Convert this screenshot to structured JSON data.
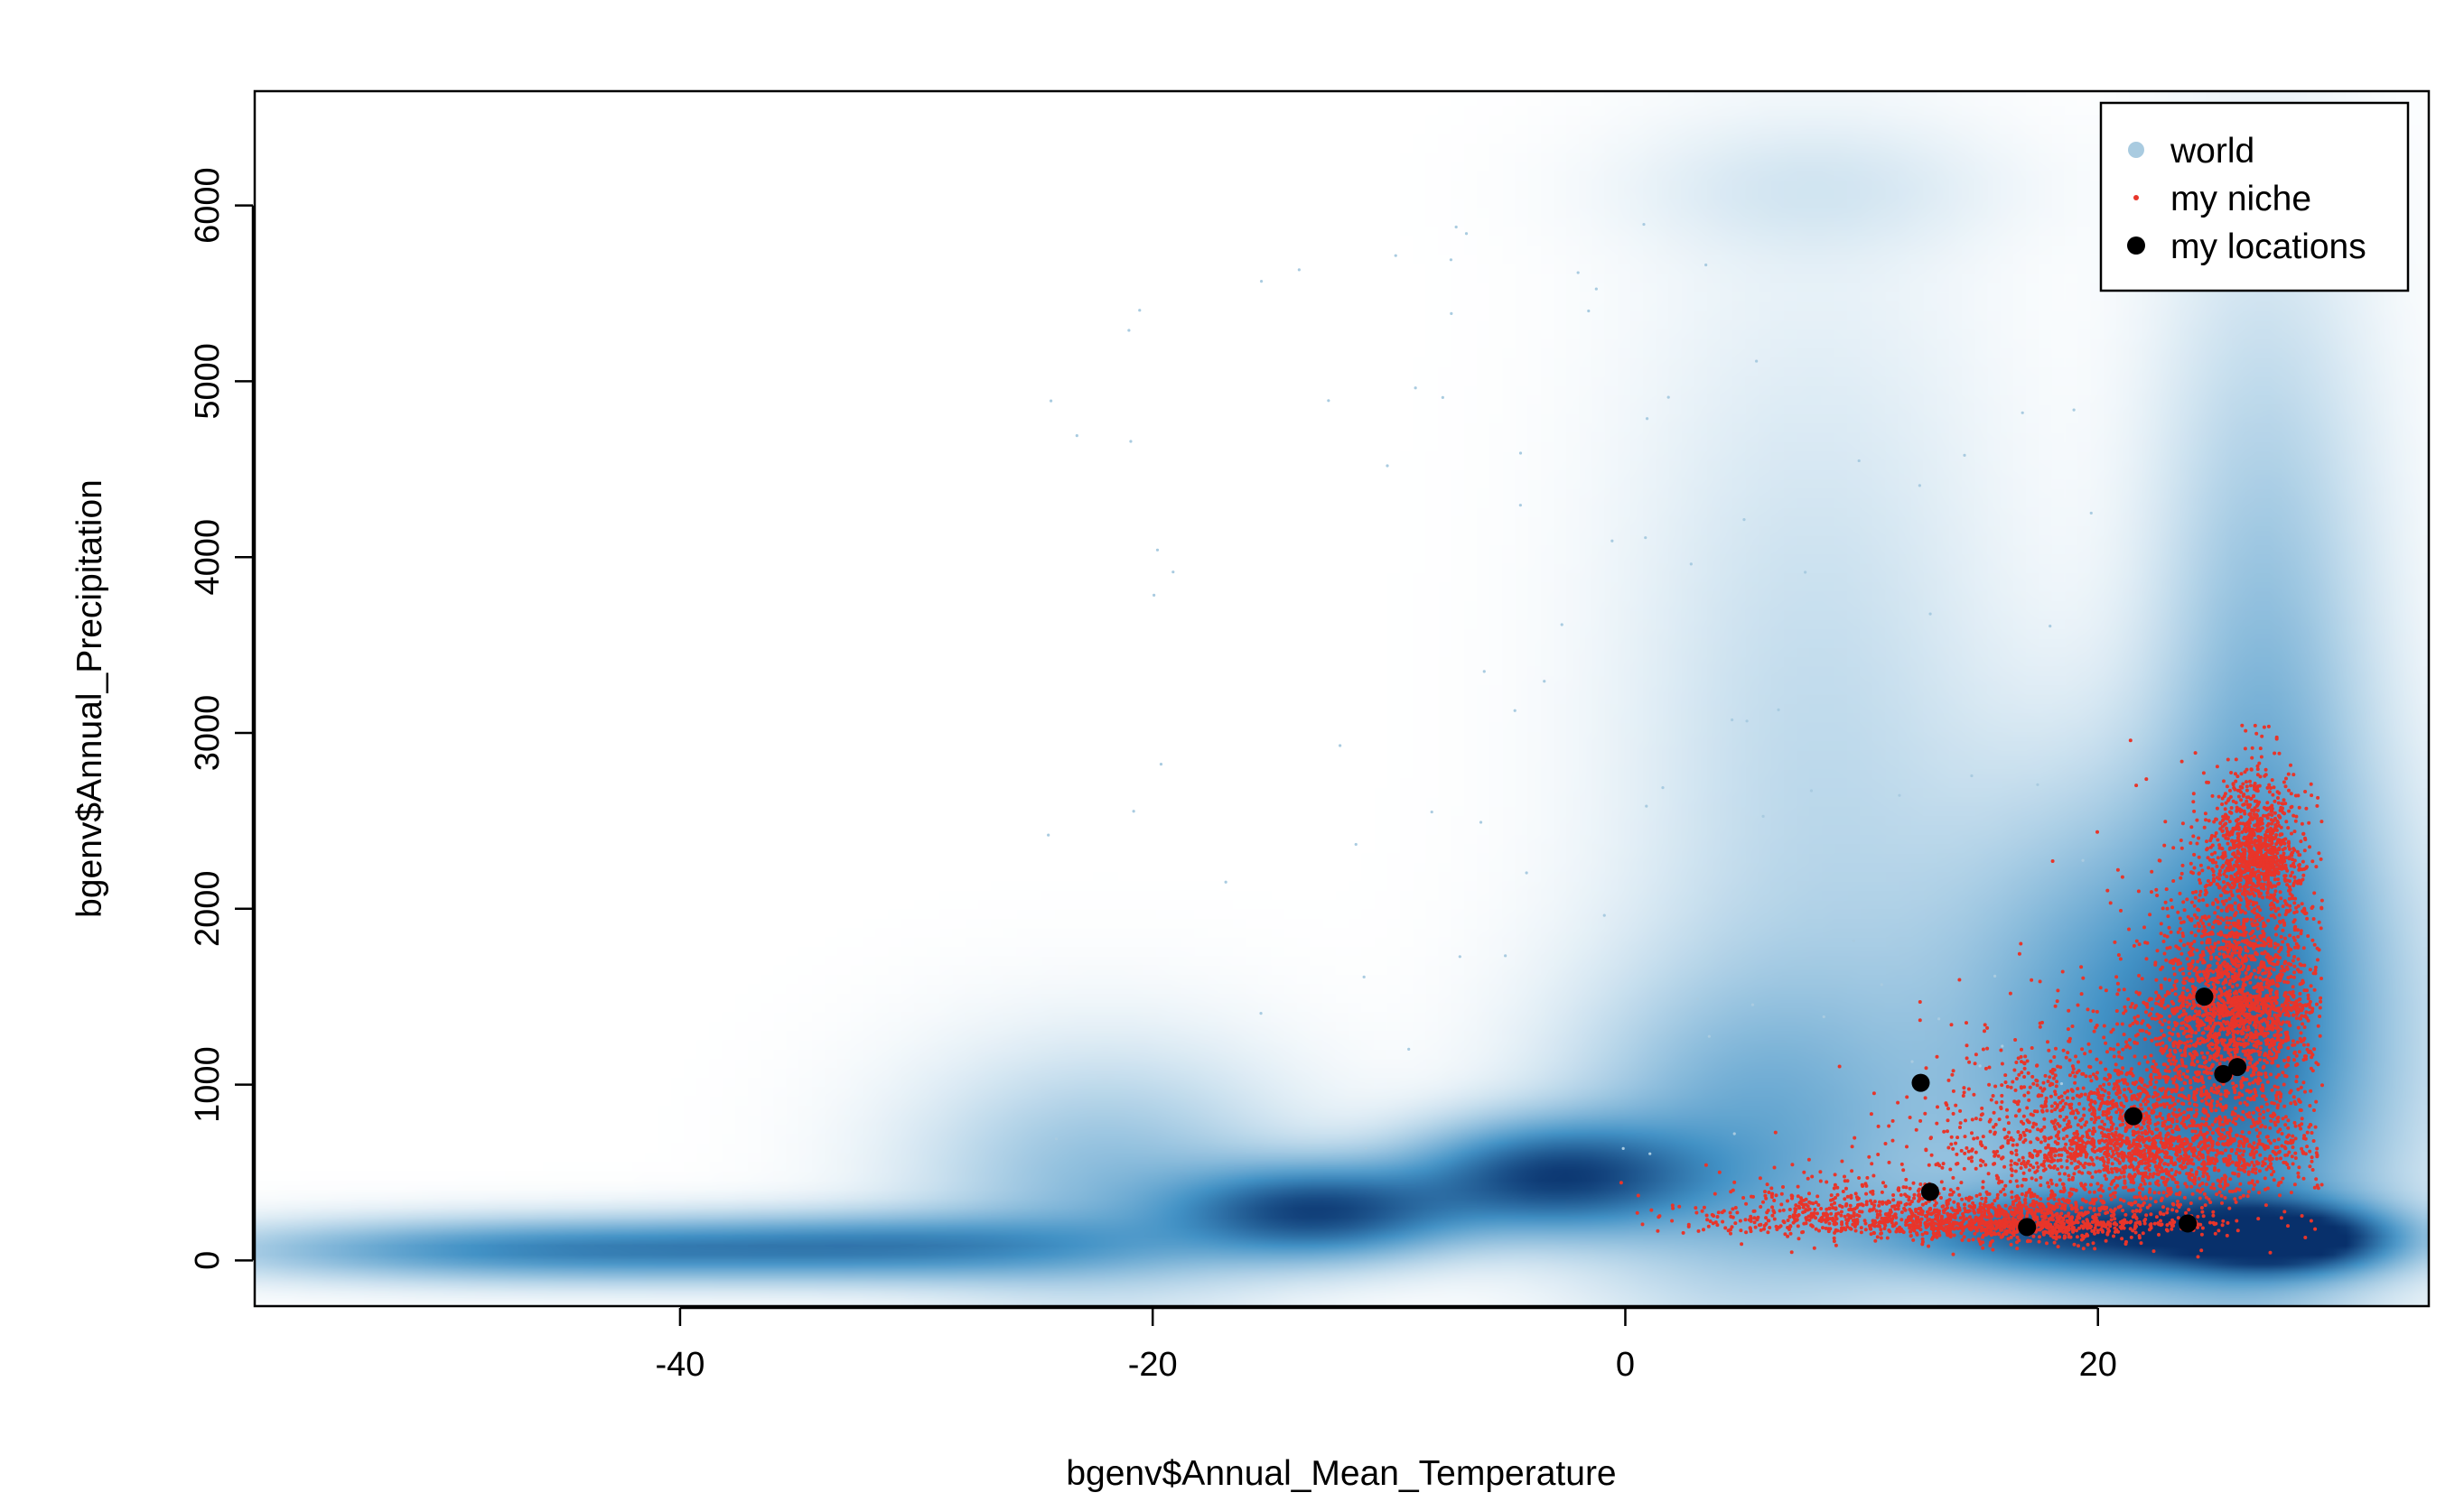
{
  "chart_data": {
    "type": "scatter",
    "title": "",
    "xlabel": "bgenv$Annual_Mean_Temperature",
    "ylabel": "bgenv$Annual_Precipitation",
    "xlim": [
      -58,
      34
    ],
    "ylim": [
      -260,
      6650
    ],
    "x_ticks": [
      -40,
      -20,
      0,
      20
    ],
    "y_ticks": [
      0,
      1000,
      2000,
      3000,
      4000,
      5000,
      6000
    ],
    "grid": false,
    "legend_position": "top-right",
    "legend": [
      {
        "label": "world",
        "color": "#a9cbe0",
        "marker": "circle-medium"
      },
      {
        "label": "my niche",
        "color": "#e8352a",
        "marker": "dot-small"
      },
      {
        "label": "my locations",
        "color": "#000000",
        "marker": "circle-large"
      }
    ],
    "series": [
      {
        "name": "world",
        "kind": "density",
        "color_low": "#ffffff",
        "color_high": "#08306b",
        "clusters": [
          {
            "x": -45,
            "y": 60,
            "sx": 9,
            "sy": 110,
            "w": 0.55
          },
          {
            "x": -30,
            "y": 80,
            "sx": 7,
            "sy": 120,
            "w": 0.45
          },
          {
            "x": -22,
            "y": 450,
            "sx": 5,
            "sy": 450,
            "w": 0.25
          },
          {
            "x": -13,
            "y": 280,
            "sx": 4,
            "sy": 170,
            "w": 0.85
          },
          {
            "x": -3,
            "y": 480,
            "sx": 4,
            "sy": 200,
            "w": 0.85
          },
          {
            "x": 5,
            "y": 700,
            "sx": 5,
            "sy": 600,
            "w": 0.3
          },
          {
            "x": 8,
            "y": 2500,
            "sx": 5,
            "sy": 1800,
            "w": 0.12
          },
          {
            "x": 8,
            "y": 6100,
            "sx": 5,
            "sy": 250,
            "w": 0.06
          },
          {
            "x": 23,
            "y": 1200,
            "sx": 6,
            "sy": 900,
            "w": 0.55
          },
          {
            "x": 27,
            "y": 2500,
            "sx": 3,
            "sy": 1800,
            "w": 0.3
          },
          {
            "x": 28,
            "y": 120,
            "sx": 3,
            "sy": 120,
            "w": 1.0
          },
          {
            "x": 20,
            "y": 150,
            "sx": 6,
            "sy": 150,
            "w": 0.7
          }
        ]
      },
      {
        "name": "my niche",
        "kind": "points",
        "color": "#e8352a",
        "clusters": [
          {
            "x": 22,
            "y": 700,
            "sx": 4,
            "sy": 450,
            "n": 2600
          },
          {
            "x": 26,
            "y": 1500,
            "sx": 1.8,
            "sy": 600,
            "n": 2200
          },
          {
            "x": 26.8,
            "y": 2300,
            "sx": 0.9,
            "sy": 300,
            "n": 900
          },
          {
            "x": 16,
            "y": 220,
            "sx": 4,
            "sy": 120,
            "n": 1300
          },
          {
            "x": 8,
            "y": 260,
            "sx": 3,
            "sy": 150,
            "n": 350
          }
        ]
      },
      {
        "name": "my locations",
        "kind": "points",
        "color": "#000000",
        "points": [
          {
            "x": 12.5,
            "y": 1010
          },
          {
            "x": 12.9,
            "y": 390
          },
          {
            "x": 17.0,
            "y": 190
          },
          {
            "x": 21.5,
            "y": 820
          },
          {
            "x": 23.8,
            "y": 210
          },
          {
            "x": 24.5,
            "y": 1500
          },
          {
            "x": 25.3,
            "y": 1060
          },
          {
            "x": 25.9,
            "y": 1100
          }
        ]
      }
    ]
  }
}
